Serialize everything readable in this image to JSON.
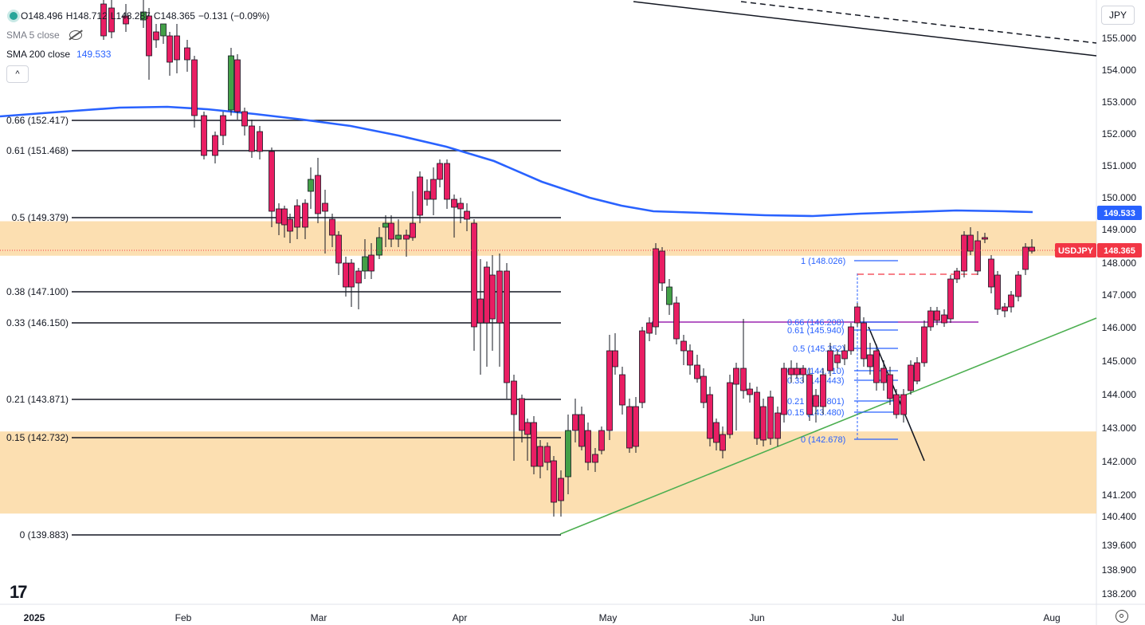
{
  "header": {
    "ohlc": [
      {
        "key": "O",
        "value": "148.496"
      },
      {
        "key": "H",
        "value": "148.712"
      },
      {
        "key": "L",
        "value": "148.287"
      },
      {
        "key": "C",
        "value": "148.365"
      },
      {
        "key": "",
        "value": "−0.131 (−0.09%)"
      }
    ],
    "sma5_label": "SMA 5 close",
    "sma200_label": "SMA 200 close",
    "sma200_value": "149.533",
    "collapse_label": "^",
    "currency": "JPY",
    "logo": "17"
  },
  "chart_data": {
    "type": "candlestick",
    "symbol": "USDJPY",
    "last_price": "148.365",
    "sma200_tag": "149.533",
    "y_axis_ticks": [
      "155.000",
      "154.000",
      "153.000",
      "152.000",
      "151.000",
      "150.000",
      "149.000",
      "148.000",
      "147.000",
      "146.000",
      "145.000",
      "144.000",
      "143.000",
      "142.000",
      "141.200",
      "140.400",
      "139.600",
      "138.900",
      "138.200"
    ],
    "x_axis_ticks": [
      "2025",
      "Feb",
      "Mar",
      "Apr",
      "May",
      "Jun",
      "Jul",
      "Aug"
    ],
    "fib_main": [
      {
        "label": "0.66 (152.417)",
        "price": 152.417
      },
      {
        "label": "0.61 (151.468)",
        "price": 151.468
      },
      {
        "label": "0.5 (149.379)",
        "price": 149.379
      },
      {
        "label": "0.38 (147.100)",
        "price": 147.1
      },
      {
        "label": "0.33 (146.150)",
        "price": 146.15
      },
      {
        "label": "0.21 (143.871)",
        "price": 143.871
      },
      {
        "label": "0.15 (142.732)",
        "price": 142.732
      },
      {
        "label": "0 (139.883)",
        "price": 139.883
      }
    ],
    "fib_small": [
      {
        "label": "1 (148.026)",
        "price": 148.026
      },
      {
        "label": "0.66 (146.208)",
        "price": 146.208
      },
      {
        "label": "0.61 (145.940)",
        "price": 145.94
      },
      {
        "label": "0.5 (145.352)",
        "price": 145.352
      },
      {
        "label": "0.38 (144.710)",
        "price": 144.71
      },
      {
        "label": "0.33 (144.443)",
        "price": 144.443
      },
      {
        "label": "0.21 (143.801)",
        "price": 143.801
      },
      {
        "label": "0.15 (143.480)",
        "price": 143.48
      },
      {
        "label": "0 (142.678)",
        "price": 142.678
      }
    ],
    "zones": [
      {
        "from": 148.2,
        "to": 149.25
      },
      {
        "from": 140.35,
        "to": 142.85
      }
    ],
    "colors": {
      "up": "#43a047",
      "down": "#e91e63",
      "sma200": "#2962ff",
      "zone": "#fcd9a3",
      "trend": "#4caf50",
      "resistance": "#9c27b0",
      "price_tag": "#f23645"
    }
  }
}
